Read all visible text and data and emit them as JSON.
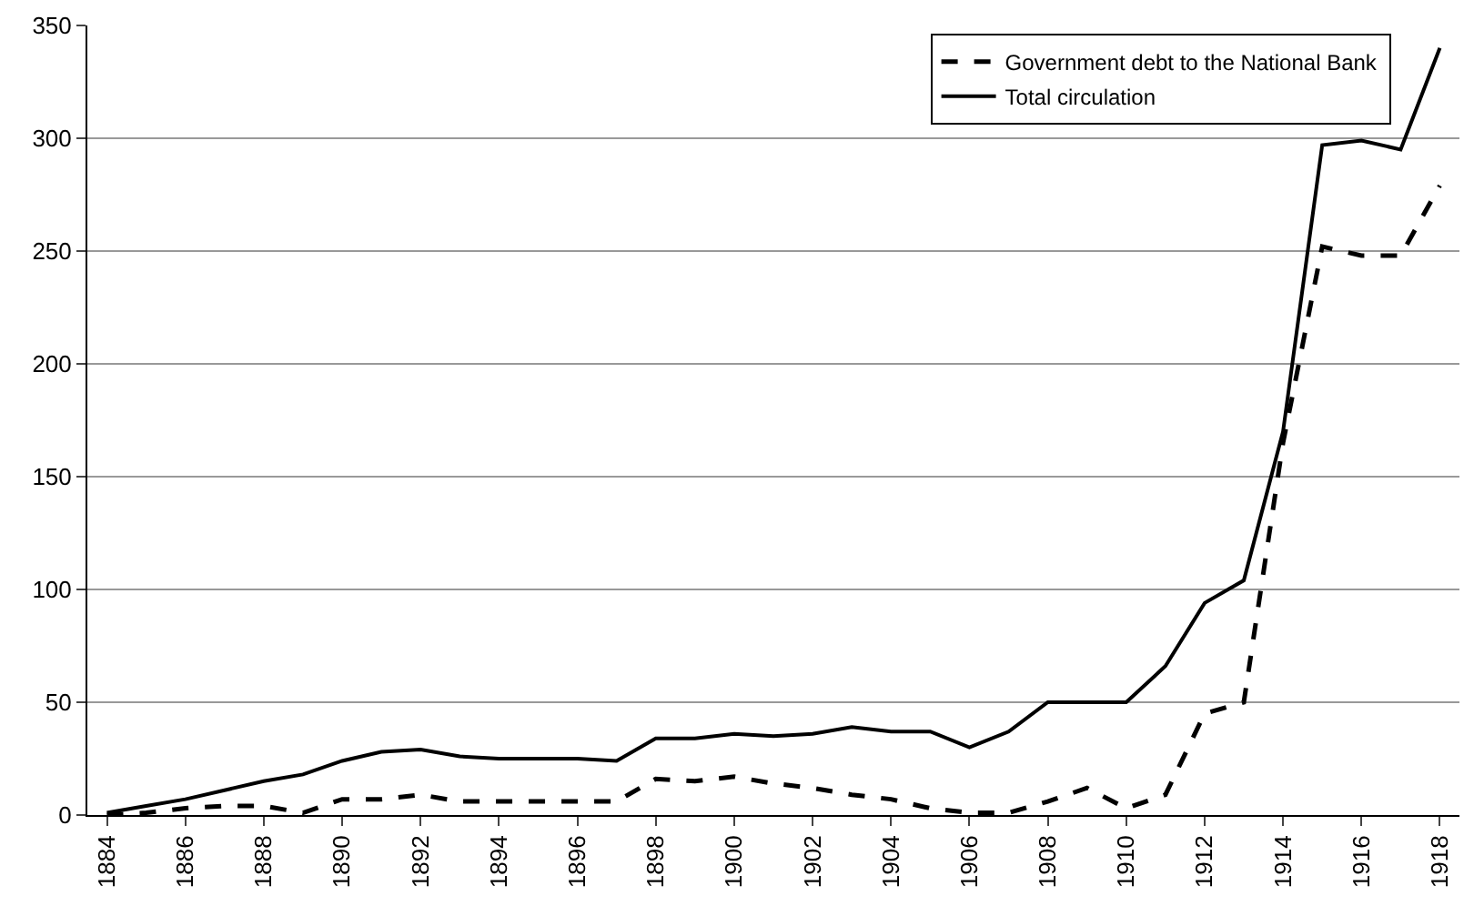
{
  "chart_data": {
    "type": "line",
    "categories": [
      "1884",
      null,
      "1886",
      null,
      "1888",
      null,
      "1890",
      null,
      "1892",
      null,
      "1894",
      null,
      "1896",
      null,
      "1898",
      null,
      "1900",
      null,
      "1902",
      null,
      "1904",
      null,
      "1906",
      null,
      "1908",
      null,
      "1910",
      null,
      "1912",
      null,
      "1914",
      null,
      "1916",
      null,
      "1918"
    ],
    "series": [
      {
        "name": "Government debt to the National Bank",
        "color": "#000000",
        "line_style": "dashed",
        "values": [
          0,
          1,
          3,
          4,
          4,
          1,
          7,
          7,
          9,
          6,
          6,
          6,
          6,
          6,
          16,
          15,
          17,
          14,
          12,
          9,
          7,
          3,
          1,
          1,
          6,
          12,
          3,
          9,
          45,
          50,
          165,
          252,
          248,
          248,
          279
        ]
      },
      {
        "name": "Total circulation",
        "color": "#000000",
        "line_style": "solid",
        "values": [
          1,
          4,
          7,
          11,
          15,
          18,
          24,
          28,
          29,
          26,
          25,
          25,
          25,
          24,
          34,
          34,
          36,
          35,
          36,
          39,
          37,
          37,
          30,
          37,
          50,
          50,
          50,
          66,
          94,
          104,
          170,
          297,
          299,
          295,
          340
        ]
      }
    ],
    "ylim": [
      0,
      350
    ],
    "yticks": [
      0,
      50,
      100,
      150,
      200,
      250,
      300,
      350
    ],
    "grid": "y",
    "legend": "top right",
    "marker": "none"
  }
}
